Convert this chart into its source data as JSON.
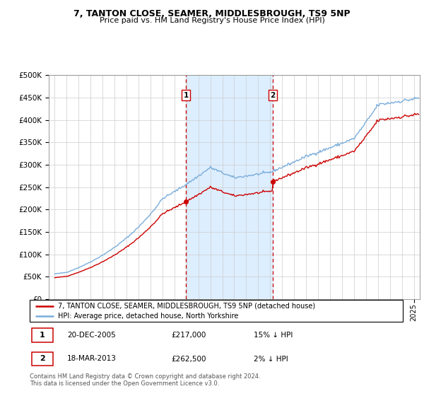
{
  "title": "7, TANTON CLOSE, SEAMER, MIDDLESBROUGH, TS9 5NP",
  "subtitle": "Price paid vs. HM Land Registry's House Price Index (HPI)",
  "legend_line1": "7, TANTON CLOSE, SEAMER, MIDDLESBROUGH, TS9 5NP (detached house)",
  "legend_line2": "HPI: Average price, detached house, North Yorkshire",
  "annotation1": {
    "num": "1",
    "date": "20-DEC-2005",
    "price": "£217,000",
    "note": "15% ↓ HPI"
  },
  "annotation2": {
    "num": "2",
    "date": "18-MAR-2013",
    "price": "£262,500",
    "note": "2% ↓ HPI"
  },
  "footer": "Contains HM Land Registry data © Crown copyright and database right 2024.\nThis data is licensed under the Open Government Licence v3.0.",
  "hpi_color": "#7aaddb",
  "price_color": "#cc0000",
  "annotation_color": "#cc0000",
  "background_color": "#ffffff",
  "shaded_region_color": "#ddeeff",
  "ylim": [
    0,
    500000
  ],
  "yticks": [
    0,
    50000,
    100000,
    150000,
    200000,
    250000,
    300000,
    350000,
    400000,
    450000,
    500000
  ],
  "sale1_x": 2005.97,
  "sale1_y": 217000,
  "sale2_x": 2013.21,
  "sale2_y": 262500,
  "xmin": 1995.0,
  "xmax": 2025.5
}
